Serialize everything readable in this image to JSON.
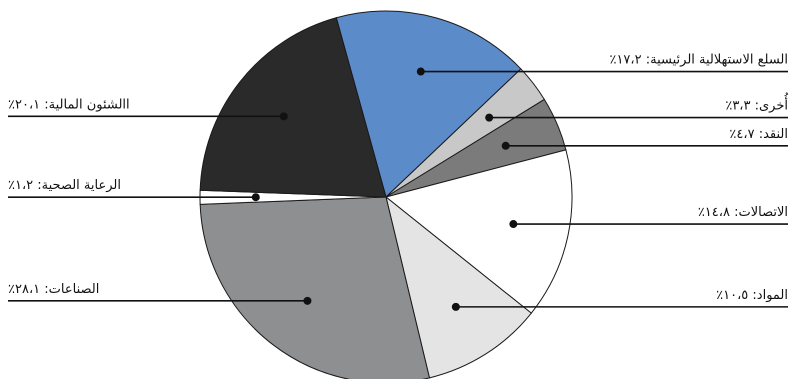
{
  "chart_data": {
    "type": "pie",
    "title": "",
    "slices": [
      {
        "label": "السلع الاستهلالية الرئيسية: ١٧،٢٪",
        "value": 17.2,
        "color": "#5b8bc9"
      },
      {
        "label": "أُخرى: ٣،٣٪",
        "value": 3.3,
        "color": "#c8c8c8"
      },
      {
        "label": "النقد: ٤،٧٪",
        "value": 4.7,
        "color": "#7b7b7b"
      },
      {
        "label": "الاتصالات: ١٤،٨٪",
        "value": 14.8,
        "color": "#ffffff"
      },
      {
        "label": "المواد: ١٠،٥٪",
        "value": 10.5,
        "color": "#e4e4e4"
      },
      {
        "label": "الصناعات: ٢٨،١٪",
        "value": 28.1,
        "color": "#8e8f91"
      },
      {
        "label": "الرعاية الصحية: ١،٢٪",
        "value": 1.2,
        "color": "#ffffff"
      },
      {
        "label": "االشئون المالية: ٢٠،١٪",
        "value": 20.1,
        "color": "#2b2a2b"
      }
    ],
    "start_angle_deg": 75.3,
    "direction": "clockwise",
    "legend": "none"
  }
}
